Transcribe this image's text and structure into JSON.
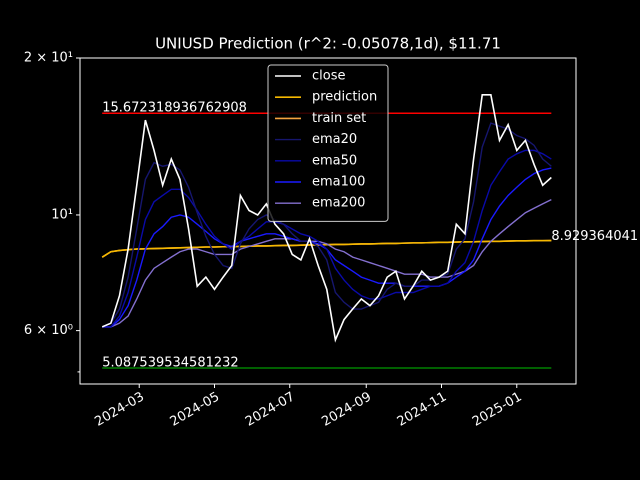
{
  "chart_data": {
    "type": "line",
    "title": "UNIUSD Prediction (r^2: -0.05078,1d), $11.71",
    "log_y": true,
    "legend": "upper center",
    "x": [
      "2024-01-31",
      "2024-02-07",
      "2024-02-14",
      "2024-02-21",
      "2024-02-28",
      "2024-03-06",
      "2024-03-13",
      "2024-03-20",
      "2024-03-27",
      "2024-04-03",
      "2024-04-10",
      "2024-04-17",
      "2024-04-24",
      "2024-05-01",
      "2024-05-08",
      "2024-05-15",
      "2024-05-22",
      "2024-05-29",
      "2024-06-05",
      "2024-06-12",
      "2024-06-19",
      "2024-06-26",
      "2024-07-03",
      "2024-07-10",
      "2024-07-17",
      "2024-07-24",
      "2024-07-31",
      "2024-08-07",
      "2024-08-14",
      "2024-08-21",
      "2024-08-28",
      "2024-09-04",
      "2024-09-11",
      "2024-09-18",
      "2024-09-25",
      "2024-10-02",
      "2024-10-09",
      "2024-10-16",
      "2024-10-23",
      "2024-10-30",
      "2024-11-06",
      "2024-11-13",
      "2024-11-20",
      "2024-11-27",
      "2024-12-04",
      "2024-12-11",
      "2024-12-18",
      "2024-12-25",
      "2025-01-01",
      "2025-01-08",
      "2025-01-15",
      "2025-01-22",
      "2025-01-29"
    ],
    "series": [
      {
        "name": "close",
        "color": "#ffffff",
        "width": 1.6,
        "values": [
          6.1,
          6.2,
          7.0,
          8.6,
          11.4,
          15.2,
          13.3,
          11.4,
          12.8,
          11.7,
          9.4,
          7.3,
          7.6,
          7.2,
          7.6,
          8.0,
          10.9,
          10.2,
          10.0,
          10.5,
          9.6,
          9.2,
          8.4,
          8.2,
          9.0,
          8.0,
          7.2,
          5.76,
          6.3,
          6.6,
          6.9,
          6.7,
          7.0,
          7.6,
          7.8,
          6.9,
          7.3,
          7.8,
          7.5,
          7.6,
          7.8,
          9.6,
          9.2,
          12.8,
          17.0,
          17.0,
          13.9,
          14.9,
          13.3,
          13.9,
          12.5,
          11.4,
          11.8
        ]
      },
      {
        "name": "prediction",
        "color": "#f5b800",
        "width": 1.6,
        "values": [
          8.3,
          8.5,
          8.55,
          8.58,
          8.6,
          8.61,
          8.62,
          8.63,
          8.64,
          8.65,
          8.66,
          8.67,
          8.68,
          8.68,
          8.69,
          8.7,
          8.7,
          8.71,
          8.72,
          8.72,
          8.73,
          8.74,
          8.74,
          8.75,
          8.76,
          8.76,
          8.77,
          8.78,
          8.78,
          8.79,
          8.8,
          8.8,
          8.81,
          8.82,
          8.82,
          8.83,
          8.84,
          8.84,
          8.85,
          8.86,
          8.86,
          8.87,
          8.88,
          8.88,
          8.89,
          8.9,
          8.9,
          8.91,
          8.92,
          8.92,
          8.925,
          8.928,
          8.929364041
        ]
      },
      {
        "name": "train set",
        "color": "#f4a340",
        "width": 1.6,
        "values": [
          8.3,
          8.5,
          8.55,
          8.58,
          8.6,
          8.61,
          8.62,
          8.63,
          8.64,
          8.65,
          8.66,
          8.67,
          8.68,
          8.68,
          8.69,
          8.7,
          8.7,
          8.71,
          8.72,
          8.72,
          8.73,
          8.74,
          8.74,
          8.75,
          8.76,
          8.76,
          8.77,
          8.78,
          8.78,
          8.79,
          8.8,
          8.8,
          8.81,
          8.82,
          8.82,
          8.83,
          8.84,
          8.84,
          8.85,
          8.86,
          8.86,
          8.87,
          8.88,
          8.88,
          8.89,
          8.9,
          8.9,
          8.91,
          8.92,
          8.92,
          8.925,
          8.928,
          8.929
        ]
      },
      {
        "name": "ema20",
        "color": "#16166e",
        "width": 1.4,
        "values": [
          6.1,
          6.2,
          6.6,
          7.6,
          9.4,
          11.7,
          12.6,
          12.4,
          12.5,
          12.2,
          11.3,
          10.1,
          9.1,
          8.4,
          8.0,
          7.9,
          8.8,
          9.4,
          9.8,
          10.0,
          9.8,
          9.6,
          9.2,
          8.9,
          8.9,
          8.7,
          8.2,
          7.1,
          6.8,
          6.6,
          6.6,
          6.7,
          6.8,
          7.2,
          7.4,
          7.3,
          7.3,
          7.5,
          7.5,
          7.6,
          7.7,
          8.6,
          9.0,
          10.6,
          13.5,
          15.0,
          14.8,
          14.6,
          14.2,
          14.0,
          13.6,
          12.8,
          12.4
        ]
      },
      {
        "name": "ema50",
        "color": "#0a0aa8",
        "width": 1.4,
        "values": [
          6.1,
          6.1,
          6.4,
          7.1,
          8.3,
          9.8,
          10.6,
          10.9,
          11.2,
          11.2,
          10.8,
          10.2,
          9.6,
          9.1,
          8.8,
          8.6,
          8.9,
          9.1,
          9.4,
          9.7,
          9.7,
          9.6,
          9.4,
          9.2,
          9.1,
          8.9,
          8.6,
          7.9,
          7.5,
          7.2,
          7.0,
          6.9,
          6.9,
          7.0,
          7.1,
          7.1,
          7.1,
          7.2,
          7.3,
          7.3,
          7.4,
          7.8,
          8.1,
          8.9,
          10.2,
          11.4,
          12.1,
          12.8,
          13.1,
          13.3,
          13.3,
          13.1,
          12.8
        ]
      },
      {
        "name": "ema100",
        "color": "#1a1aff",
        "width": 1.4,
        "values": [
          6.1,
          6.1,
          6.3,
          6.7,
          7.5,
          8.6,
          9.2,
          9.5,
          9.9,
          10.0,
          9.9,
          9.6,
          9.3,
          9.0,
          8.8,
          8.7,
          8.9,
          9.0,
          9.1,
          9.2,
          9.2,
          9.1,
          9.0,
          8.9,
          8.9,
          8.8,
          8.6,
          8.2,
          8.0,
          7.8,
          7.6,
          7.5,
          7.4,
          7.4,
          7.4,
          7.3,
          7.3,
          7.3,
          7.3,
          7.3,
          7.4,
          7.6,
          7.8,
          8.2,
          9.0,
          9.8,
          10.4,
          10.9,
          11.3,
          11.7,
          12.0,
          12.2,
          12.3
        ]
      },
      {
        "name": "ema200",
        "color": "#8470d0",
        "width": 1.4,
        "values": [
          6.1,
          6.1,
          6.2,
          6.4,
          6.9,
          7.5,
          7.9,
          8.1,
          8.3,
          8.5,
          8.6,
          8.6,
          8.5,
          8.4,
          8.4,
          8.4,
          8.6,
          8.7,
          8.8,
          8.9,
          9.0,
          9.0,
          9.0,
          8.9,
          8.9,
          8.9,
          8.8,
          8.6,
          8.5,
          8.3,
          8.2,
          8.1,
          8.0,
          7.9,
          7.8,
          7.7,
          7.7,
          7.7,
          7.6,
          7.6,
          7.6,
          7.7,
          7.8,
          8.0,
          8.5,
          8.9,
          9.2,
          9.5,
          9.8,
          10.1,
          10.3,
          10.5,
          10.7
        ]
      }
    ],
    "hlines": [
      {
        "value": 15.672318936762908,
        "color": "#ff0000"
      },
      {
        "value": 5.087539534581232,
        "color": "#008000"
      }
    ],
    "xlim": [
      "2024-01-13",
      "2025-02-18"
    ],
    "xticks": [
      {
        "value": "2024-03-01",
        "label": "2024-03"
      },
      {
        "value": "2024-05-01",
        "label": "2024-05"
      },
      {
        "value": "2024-07-01",
        "label": "2024-07"
      },
      {
        "value": "2024-09-01",
        "label": "2024-09"
      },
      {
        "value": "2024-11-01",
        "label": "2024-11"
      },
      {
        "value": "2025-01-01",
        "label": "2025-01"
      }
    ],
    "ylim": [
      4.74,
      20
    ],
    "yticks": [
      {
        "value": 20,
        "label": "2 × 10¹"
      },
      {
        "value": 10,
        "label": "10¹"
      },
      {
        "value": 6,
        "label": "6 × 10⁰"
      }
    ],
    "yminorticks": [
      5
    ]
  }
}
